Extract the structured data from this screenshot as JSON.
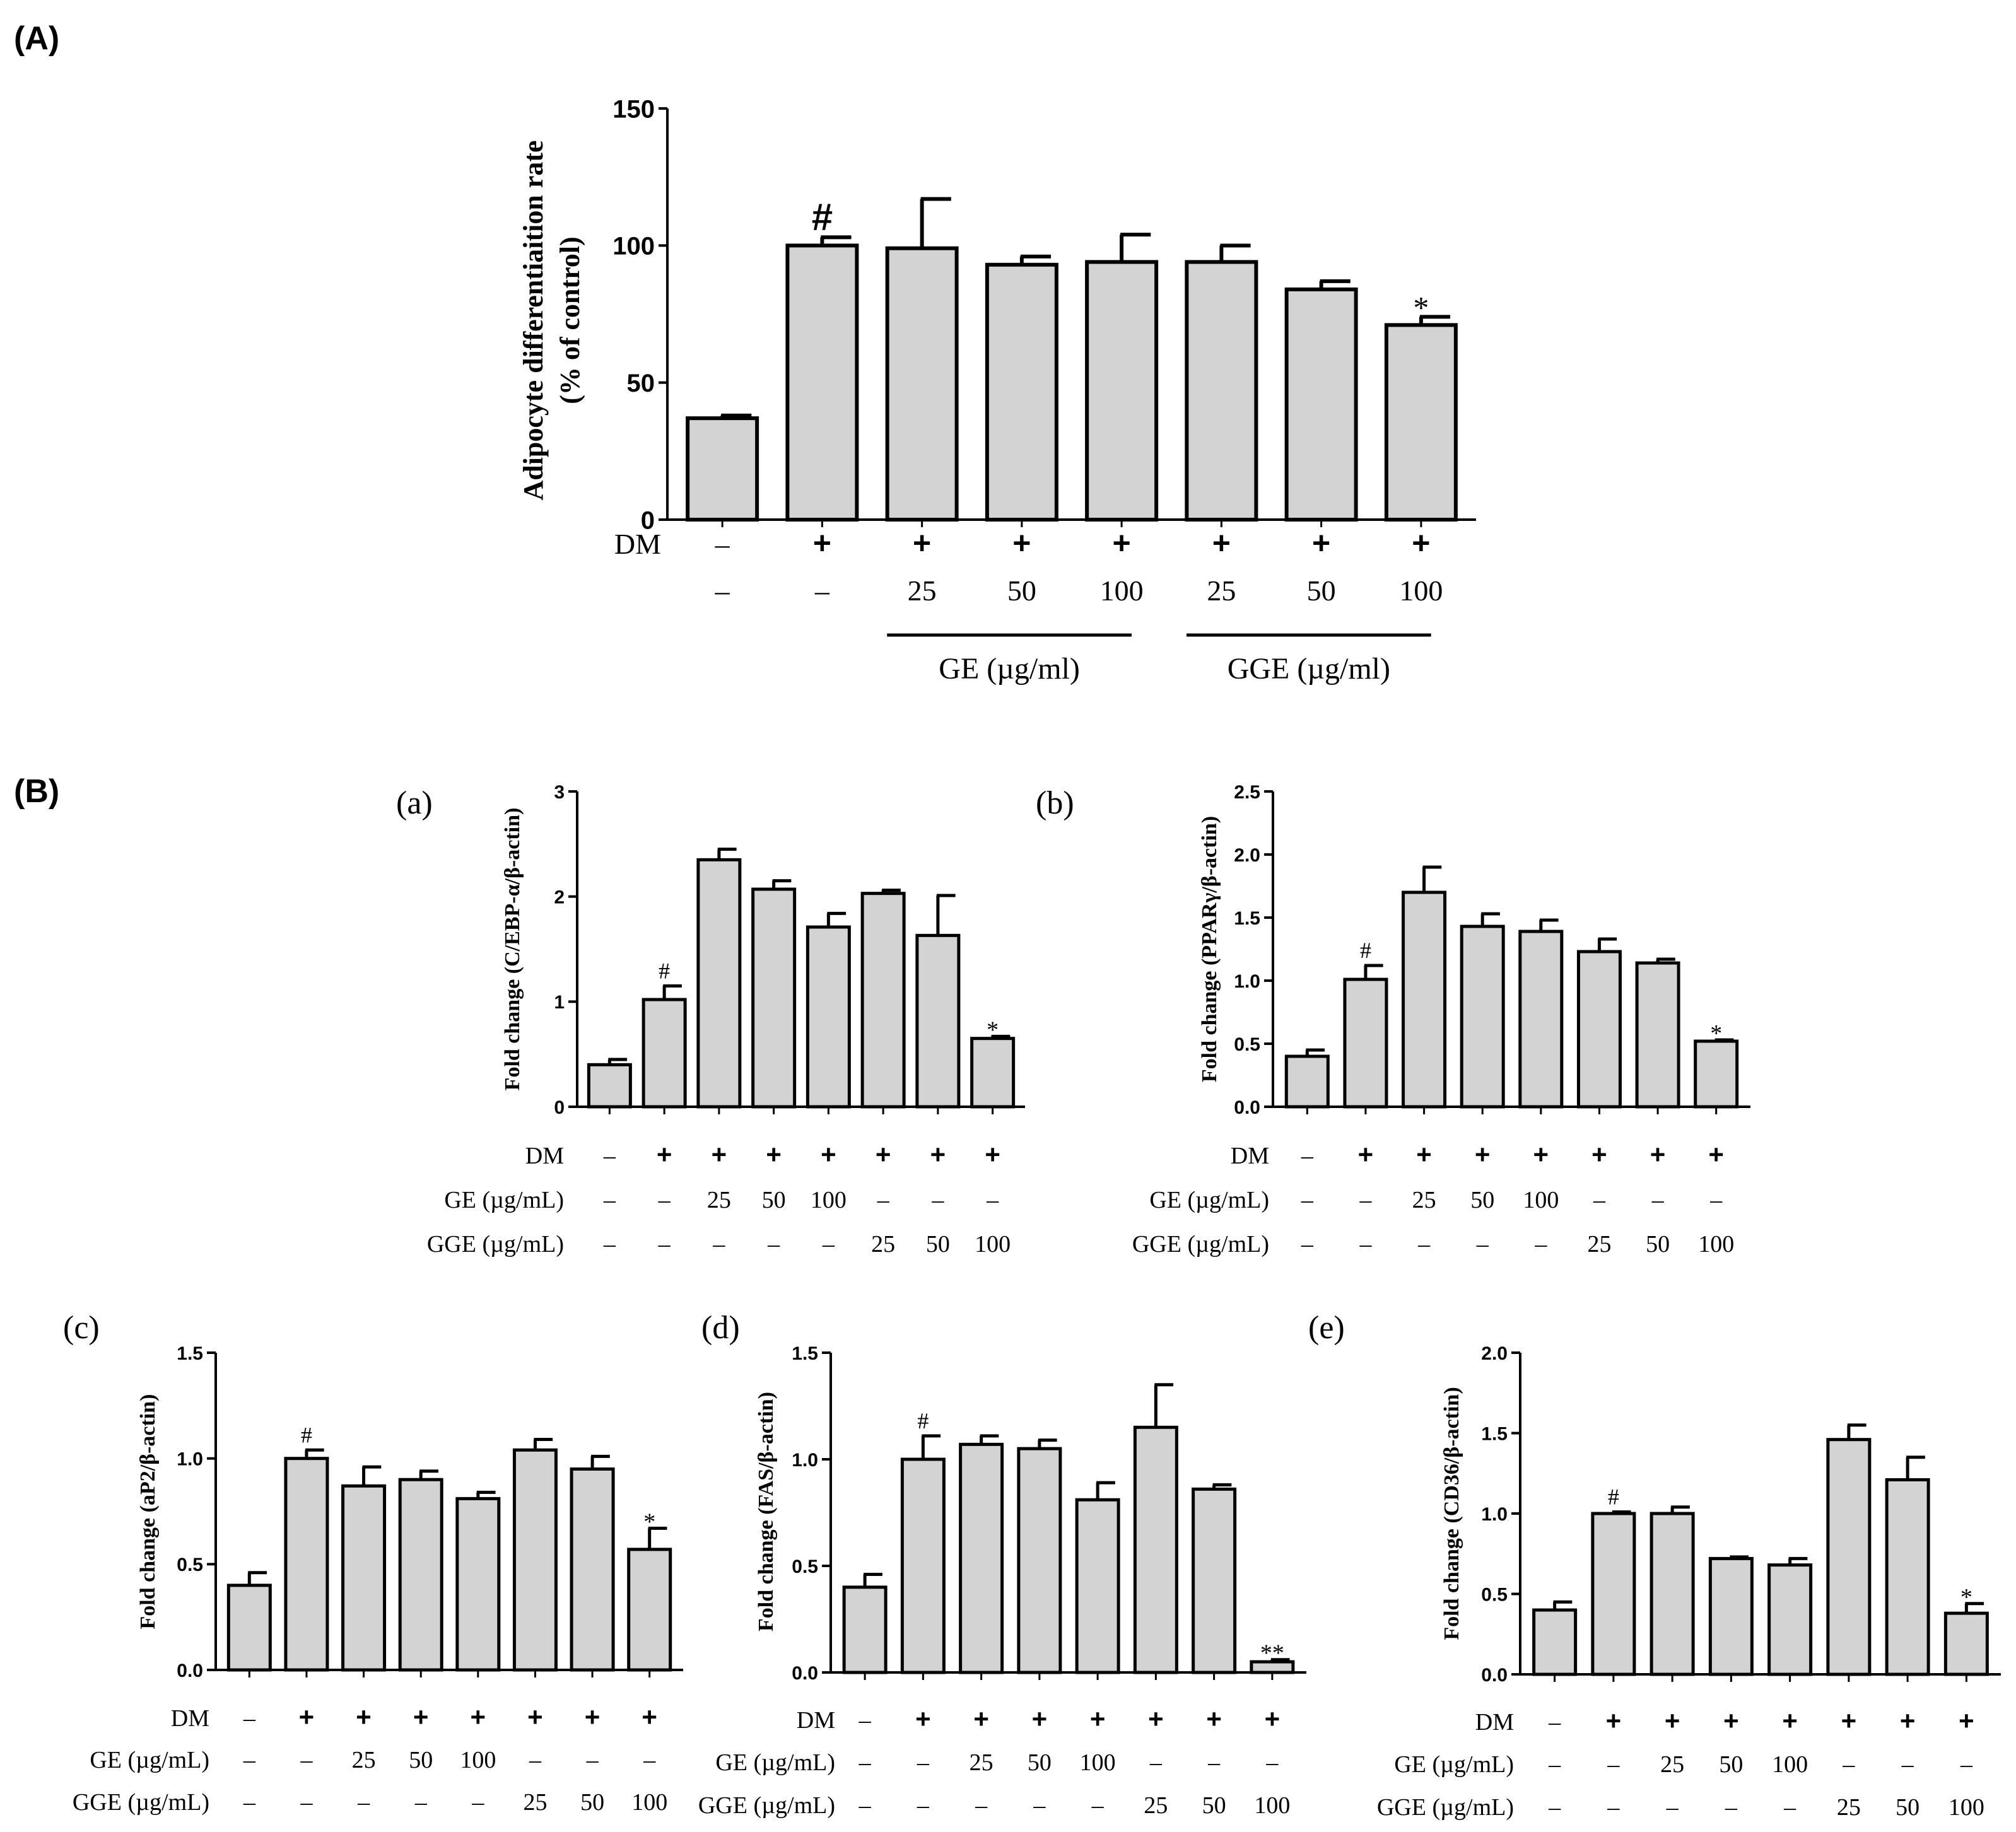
{
  "labels": {
    "panel_a": "(A)",
    "panel_b": "(B)"
  },
  "chart_data": [
    {
      "id": "A",
      "type": "bar",
      "ylabel_lines": [
        "Adipocyte differentiaition rate",
        "(% of control)"
      ],
      "ylim": [
        0,
        150
      ],
      "yticks": [
        "0",
        "50",
        "100",
        "150"
      ],
      "values": [
        37,
        100,
        99,
        93,
        94,
        94,
        84,
        71
      ],
      "errors": [
        1,
        3,
        18,
        3,
        10,
        6,
        3,
        3
      ],
      "annotations": [
        "",
        "#",
        "",
        "",
        "",
        "",
        "",
        "*"
      ],
      "rows": [
        {
          "label": "DM",
          "cells": [
            "–",
            "+",
            "+",
            "+",
            "+",
            "+",
            "+",
            "+"
          ]
        },
        {
          "label": "",
          "cells": [
            "–",
            "–",
            "25",
            "50",
            "100",
            "25",
            "50",
            "100"
          ]
        }
      ],
      "groups": [
        {
          "label": "GE (µg/ml)",
          "from": 2,
          "to": 4
        },
        {
          "label": "GGE (µg/ml)",
          "from": 5,
          "to": 7
        }
      ]
    },
    {
      "id": "a",
      "type": "bar",
      "tag": "(a)",
      "ylabel": "Fold change (C/EBP-α/β-actin)",
      "ylim": [
        0,
        3
      ],
      "yticks": [
        "0",
        "1",
        "2",
        "3"
      ],
      "values": [
        0.4,
        1.02,
        2.35,
        2.07,
        1.71,
        2.03,
        1.63,
        0.65
      ],
      "errors": [
        0.05,
        0.13,
        0.1,
        0.08,
        0.13,
        0.03,
        0.38,
        0.02
      ],
      "annotations": [
        "",
        "#",
        "",
        "",
        "",
        "",
        "",
        "*"
      ],
      "rows": [
        {
          "label": "DM",
          "cells": [
            "–",
            "+",
            "+",
            "+",
            "+",
            "+",
            "+",
            "+"
          ]
        },
        {
          "label": "GE (µg/mL)",
          "cells": [
            "–",
            "–",
            "25",
            "50",
            "100",
            "–",
            "–",
            "–"
          ]
        },
        {
          "label": "GGE (µg/mL)",
          "cells": [
            "–",
            "–",
            "–",
            "–",
            "–",
            "25",
            "50",
            "100"
          ]
        }
      ]
    },
    {
      "id": "b",
      "type": "bar",
      "tag": "(b)",
      "ylabel": "Fold change (PPARγ/β-actin)",
      "ylim": [
        0,
        2.5
      ],
      "yticks": [
        "0.0",
        "0.5",
        "1.0",
        "1.5",
        "2.0",
        "2.5"
      ],
      "values": [
        0.4,
        1.01,
        1.7,
        1.43,
        1.39,
        1.23,
        1.14,
        0.52
      ],
      "errors": [
        0.05,
        0.11,
        0.2,
        0.1,
        0.09,
        0.1,
        0.03,
        0.01
      ],
      "annotations": [
        "",
        "#",
        "",
        "",
        "",
        "",
        "",
        "*"
      ],
      "rows": [
        {
          "label": "DM",
          "cells": [
            "–",
            "+",
            "+",
            "+",
            "+",
            "+",
            "+",
            "+"
          ]
        },
        {
          "label": "GE (µg/mL)",
          "cells": [
            "–",
            "–",
            "25",
            "50",
            "100",
            "–",
            "–",
            "–"
          ]
        },
        {
          "label": "GGE (µg/mL)",
          "cells": [
            "–",
            "–",
            "–",
            "–",
            "–",
            "25",
            "50",
            "100"
          ]
        }
      ]
    },
    {
      "id": "c",
      "type": "bar",
      "tag": "(c)",
      "ylabel": "Fold change (aP2/β-actin)",
      "ylim": [
        0,
        1.5
      ],
      "yticks": [
        "0.0",
        "0.5",
        "1.0",
        "1.5"
      ],
      "values": [
        0.4,
        1.0,
        0.87,
        0.9,
        0.81,
        1.04,
        0.95,
        0.57
      ],
      "errors": [
        0.06,
        0.04,
        0.09,
        0.04,
        0.03,
        0.05,
        0.06,
        0.1
      ],
      "annotations": [
        "",
        "#",
        "",
        "",
        "",
        "",
        "",
        "*"
      ],
      "rows": [
        {
          "label": "DM",
          "cells": [
            "–",
            "+",
            "+",
            "+",
            "+",
            "+",
            "+",
            "+"
          ]
        },
        {
          "label": "GE (µg/mL)",
          "cells": [
            "–",
            "–",
            "25",
            "50",
            "100",
            "–",
            "–",
            "–"
          ]
        },
        {
          "label": "GGE (µg/mL)",
          "cells": [
            "–",
            "–",
            "–",
            "–",
            "–",
            "25",
            "50",
            "100"
          ]
        }
      ]
    },
    {
      "id": "d",
      "type": "bar",
      "tag": "(d)",
      "ylabel": "Fold change (FAS/β-actin)",
      "ylim": [
        0,
        1.5
      ],
      "yticks": [
        "0.0",
        "0.5",
        "1.0",
        "1.5"
      ],
      "values": [
        0.4,
        1.0,
        1.07,
        1.05,
        0.81,
        1.15,
        0.86,
        0.05
      ],
      "errors": [
        0.06,
        0.11,
        0.04,
        0.04,
        0.08,
        0.2,
        0.02,
        0.01
      ],
      "annotations": [
        "",
        "#",
        "",
        "",
        "",
        "",
        "",
        "**"
      ],
      "rows": [
        {
          "label": "DM",
          "cells": [
            "–",
            "+",
            "+",
            "+",
            "+",
            "+",
            "+",
            "+"
          ]
        },
        {
          "label": "GE (µg/mL)",
          "cells": [
            "–",
            "–",
            "25",
            "50",
            "100",
            "–",
            "–",
            "–"
          ]
        },
        {
          "label": "GGE (µg/mL)",
          "cells": [
            "–",
            "–",
            "–",
            "–",
            "–",
            "25",
            "50",
            "100"
          ]
        }
      ]
    },
    {
      "id": "e",
      "type": "bar",
      "tag": "(e)",
      "ylabel": "Fold change (CD36/β-actin)",
      "ylim": [
        0,
        2.0
      ],
      "yticks": [
        "0.0",
        "0.5",
        "1.0",
        "1.5",
        "2.0"
      ],
      "values": [
        0.4,
        1.0,
        1.0,
        0.72,
        0.68,
        1.46,
        1.21,
        0.38
      ],
      "errors": [
        0.05,
        0.01,
        0.04,
        0.01,
        0.04,
        0.09,
        0.14,
        0.06
      ],
      "annotations": [
        "",
        "#",
        "",
        "",
        "",
        "",
        "",
        "*"
      ],
      "rows": [
        {
          "label": "DM",
          "cells": [
            "–",
            "+",
            "+",
            "+",
            "+",
            "+",
            "+",
            "+"
          ]
        },
        {
          "label": "GE (µg/mL)",
          "cells": [
            "–",
            "–",
            "25",
            "50",
            "100",
            "–",
            "–",
            "–"
          ]
        },
        {
          "label": "GGE (µg/mL)",
          "cells": [
            "–",
            "–",
            "–",
            "–",
            "–",
            "25",
            "50",
            "100"
          ]
        }
      ]
    }
  ]
}
